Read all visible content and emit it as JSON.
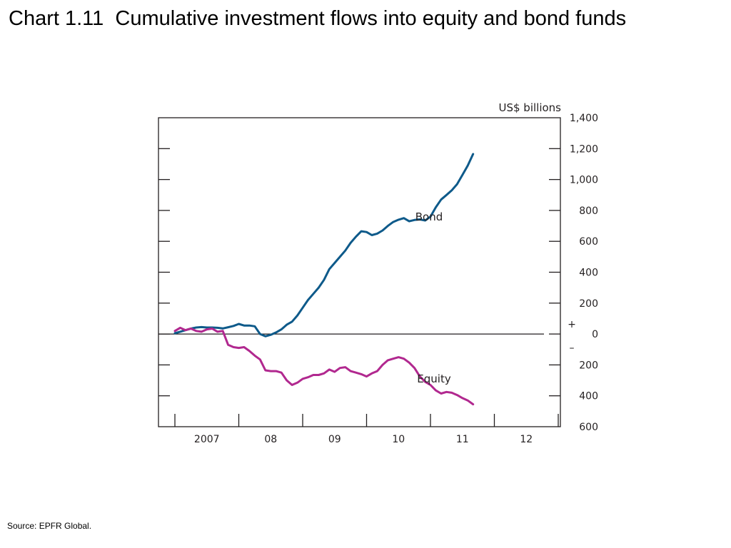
{
  "slide": {
    "title": "Chart 1.11  Cumulative investment flows into equity and bond funds",
    "source": "Source:  EPFR Global."
  },
  "chart_data": {
    "type": "line",
    "title": "",
    "xlabel": "",
    "ylabel": "US$ billions",
    "x_tick_labels": [
      "2007",
      "08",
      "09",
      "10",
      "11",
      "12"
    ],
    "y_tick_labels": [
      "600",
      "400",
      "200",
      "0",
      "200",
      "400",
      "600",
      "800",
      "1,000",
      "1,200",
      "1,400"
    ],
    "y_tick_values": [
      -600,
      -400,
      -200,
      0,
      200,
      400,
      600,
      800,
      1000,
      1200,
      1400
    ],
    "sign_markers": {
      "plus": "+",
      "minus": "–"
    },
    "xlim": [
      2007.0,
      2013.0
    ],
    "ylim": [
      -600,
      1400
    ],
    "grid": false,
    "series": [
      {
        "name": "Bond",
        "color": "#0e5a8a",
        "points": [
          [
            2007.0,
            5
          ],
          [
            2007.083,
            15
          ],
          [
            2007.167,
            25
          ],
          [
            2007.25,
            35
          ],
          [
            2007.333,
            42
          ],
          [
            2007.417,
            45
          ],
          [
            2007.5,
            42
          ],
          [
            2007.583,
            42
          ],
          [
            2007.667,
            40
          ],
          [
            2007.75,
            36
          ],
          [
            2007.833,
            44
          ],
          [
            2007.917,
            52
          ],
          [
            2008.0,
            65
          ],
          [
            2008.083,
            55
          ],
          [
            2008.167,
            55
          ],
          [
            2008.25,
            50
          ],
          [
            2008.333,
            0
          ],
          [
            2008.417,
            -15
          ],
          [
            2008.5,
            -5
          ],
          [
            2008.583,
            10
          ],
          [
            2008.667,
            30
          ],
          [
            2008.75,
            60
          ],
          [
            2008.833,
            80
          ],
          [
            2008.917,
            120
          ],
          [
            2009.0,
            170
          ],
          [
            2009.083,
            220
          ],
          [
            2009.167,
            260
          ],
          [
            2009.25,
            300
          ],
          [
            2009.333,
            350
          ],
          [
            2009.417,
            420
          ],
          [
            2009.5,
            460
          ],
          [
            2009.583,
            500
          ],
          [
            2009.667,
            540
          ],
          [
            2009.75,
            590
          ],
          [
            2009.833,
            630
          ],
          [
            2009.917,
            665
          ],
          [
            2010.0,
            660
          ],
          [
            2010.083,
            640
          ],
          [
            2010.167,
            650
          ],
          [
            2010.25,
            670
          ],
          [
            2010.333,
            700
          ],
          [
            2010.417,
            725
          ],
          [
            2010.5,
            740
          ],
          [
            2010.583,
            750
          ],
          [
            2010.667,
            730
          ],
          [
            2010.75,
            738
          ],
          [
            2010.833,
            742
          ],
          [
            2010.917,
            735
          ],
          [
            2011.0,
            760
          ],
          [
            2011.083,
            820
          ],
          [
            2011.167,
            870
          ],
          [
            2011.25,
            900
          ],
          [
            2011.333,
            930
          ],
          [
            2011.417,
            970
          ],
          [
            2011.5,
            1030
          ],
          [
            2011.583,
            1090
          ],
          [
            2011.667,
            1165
          ]
        ]
      },
      {
        "name": "Equity",
        "color": "#b1288f",
        "points": [
          [
            2007.0,
            20
          ],
          [
            2007.083,
            40
          ],
          [
            2007.167,
            25
          ],
          [
            2007.25,
            35
          ],
          [
            2007.333,
            20
          ],
          [
            2007.417,
            15
          ],
          [
            2007.5,
            30
          ],
          [
            2007.583,
            35
          ],
          [
            2007.667,
            15
          ],
          [
            2007.75,
            20
          ],
          [
            2007.833,
            -70
          ],
          [
            2007.917,
            -85
          ],
          [
            2008.0,
            -90
          ],
          [
            2008.083,
            -85
          ],
          [
            2008.167,
            -110
          ],
          [
            2008.25,
            -140
          ],
          [
            2008.333,
            -165
          ],
          [
            2008.417,
            -235
          ],
          [
            2008.5,
            -240
          ],
          [
            2008.583,
            -240
          ],
          [
            2008.667,
            -250
          ],
          [
            2008.75,
            -300
          ],
          [
            2008.833,
            -330
          ],
          [
            2008.917,
            -315
          ],
          [
            2009.0,
            -290
          ],
          [
            2009.083,
            -280
          ],
          [
            2009.167,
            -265
          ],
          [
            2009.25,
            -265
          ],
          [
            2009.333,
            -255
          ],
          [
            2009.417,
            -230
          ],
          [
            2009.5,
            -245
          ],
          [
            2009.583,
            -220
          ],
          [
            2009.667,
            -215
          ],
          [
            2009.75,
            -240
          ],
          [
            2009.833,
            -250
          ],
          [
            2009.917,
            -260
          ],
          [
            2010.0,
            -275
          ],
          [
            2010.083,
            -255
          ],
          [
            2010.167,
            -240
          ],
          [
            2010.25,
            -200
          ],
          [
            2010.333,
            -170
          ],
          [
            2010.417,
            -160
          ],
          [
            2010.5,
            -150
          ],
          [
            2010.583,
            -160
          ],
          [
            2010.667,
            -185
          ],
          [
            2010.75,
            -220
          ],
          [
            2010.833,
            -275
          ],
          [
            2010.917,
            -310
          ],
          [
            2011.0,
            -330
          ],
          [
            2011.083,
            -365
          ],
          [
            2011.167,
            -385
          ],
          [
            2011.25,
            -375
          ],
          [
            2011.333,
            -380
          ],
          [
            2011.417,
            -395
          ],
          [
            2011.5,
            -415
          ],
          [
            2011.583,
            -430
          ],
          [
            2011.667,
            -455
          ]
        ]
      }
    ]
  }
}
